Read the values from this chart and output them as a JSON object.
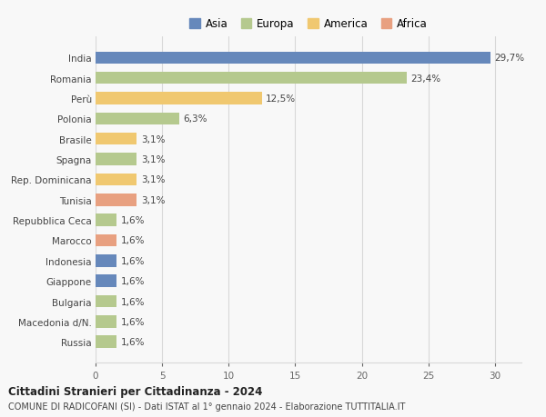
{
  "categories": [
    "Russia",
    "Macedonia d/N.",
    "Bulgaria",
    "Giappone",
    "Indonesia",
    "Marocco",
    "Repubblica Ceca",
    "Tunisia",
    "Rep. Dominicana",
    "Spagna",
    "Brasile",
    "Polonia",
    "Perù",
    "Romania",
    "India"
  ],
  "values": [
    1.6,
    1.6,
    1.6,
    1.6,
    1.6,
    1.6,
    1.6,
    3.1,
    3.1,
    3.1,
    3.1,
    6.3,
    12.5,
    23.4,
    29.7
  ],
  "labels": [
    "1,6%",
    "1,6%",
    "1,6%",
    "1,6%",
    "1,6%",
    "1,6%",
    "1,6%",
    "3,1%",
    "3,1%",
    "3,1%",
    "3,1%",
    "6,3%",
    "12,5%",
    "23,4%",
    "29,7%"
  ],
  "colors": [
    "#b5c98e",
    "#b5c98e",
    "#b5c98e",
    "#6688bb",
    "#6688bb",
    "#e8a080",
    "#b5c98e",
    "#e8a080",
    "#f0c870",
    "#b5c98e",
    "#f0c870",
    "#b5c98e",
    "#f0c870",
    "#b5c98e",
    "#6688bb"
  ],
  "continent_colors": {
    "Asia": "#6688bb",
    "Europa": "#b5c98e",
    "America": "#f0c870",
    "Africa": "#e8a080"
  },
  "title1": "Cittadini Stranieri per Cittadinanza - 2024",
  "title2": "COMUNE DI RADICOFANI (SI) - Dati ISTAT al 1° gennaio 2024 - Elaborazione TUTTITALIA.IT",
  "xlim": [
    0,
    32
  ],
  "xticks": [
    0,
    5,
    10,
    15,
    20,
    25,
    30
  ],
  "background_color": "#f8f8f8",
  "grid_color": "#d8d8d8",
  "bar_height": 0.6
}
